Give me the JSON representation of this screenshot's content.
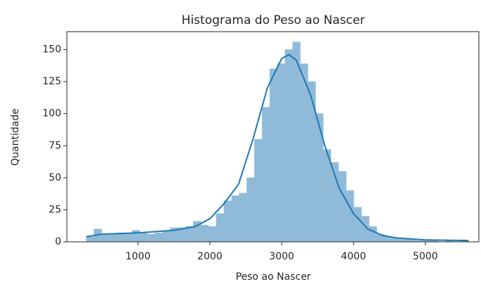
{
  "chart_data": {
    "type": "histogram",
    "title": "Histograma do Peso ao Nascer",
    "x_label": "Peso ao Nascer",
    "y_label": "Quantidade",
    "color": "#8fbbd9",
    "bins": [
      280,
      386.4,
      492.8,
      599.2,
      705.6,
      812,
      918.4,
      1024.8,
      1131.2,
      1237.6,
      1344,
      1450.4,
      1556.8,
      1663.2,
      1769.6,
      1876,
      1982.4,
      2088.8,
      2195.2,
      2301.6,
      2408,
      2514.4,
      2620.8,
      2727.2,
      2833.6,
      2940,
      3046.4,
      3152.8,
      3259.2,
      3365.6,
      3472,
      3578.4,
      3684.8,
      3791.2,
      3897.6,
      4004,
      4110.4,
      4216.8,
      4323.2,
      4429.6,
      4536,
      4642.4,
      4748.8,
      4855.2,
      4961.6,
      5068,
      5174.4,
      5280.8,
      5387.2,
      5493.6,
      5600
    ],
    "values": [
      4,
      10,
      6,
      6,
      7,
      7,
      9,
      7,
      6,
      7,
      8,
      11,
      11,
      12,
      16,
      13,
      12,
      22,
      32,
      36,
      38,
      50,
      80,
      105,
      135,
      139,
      150,
      156,
      139,
      125,
      100,
      72,
      62,
      55,
      40,
      27,
      20,
      12,
      6,
      4,
      3,
      2,
      2,
      1,
      1,
      1,
      0,
      1,
      0,
      1
    ],
    "kde": {
      "color": "#1f77b4",
      "x": [
        280,
        500,
        1000,
        1500,
        1800,
        2000,
        2200,
        2400,
        2600,
        2800,
        3000,
        3100,
        3200,
        3400,
        3600,
        3800,
        4000,
        4200,
        4400,
        4600,
        5000,
        5600
      ],
      "values": [
        4,
        6,
        7,
        9,
        12,
        18,
        30,
        45,
        80,
        120,
        143,
        146,
        142,
        115,
        75,
        42,
        22,
        10,
        5,
        3,
        1.5,
        1
      ]
    },
    "xlim": [
      10,
      5745
    ],
    "ylim": [
      0,
      164
    ],
    "xticks": [
      1000,
      2000,
      3000,
      4000,
      5000
    ],
    "yticks": [
      0,
      25,
      50,
      75,
      100,
      125,
      150
    ]
  }
}
